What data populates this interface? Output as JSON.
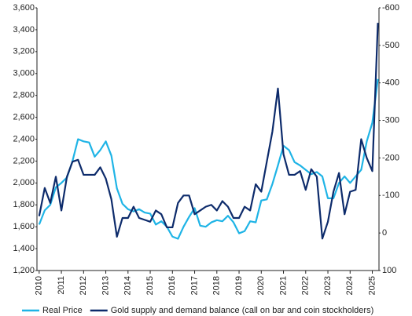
{
  "chart_data": {
    "type": "line",
    "x": [
      2010,
      2010.25,
      2010.5,
      2010.75,
      2011,
      2011.25,
      2011.5,
      2011.75,
      2012,
      2012.25,
      2012.5,
      2012.75,
      2013,
      2013.25,
      2013.5,
      2013.75,
      2014,
      2014.25,
      2014.5,
      2014.75,
      2015,
      2015.25,
      2015.5,
      2015.75,
      2016,
      2016.25,
      2016.5,
      2016.75,
      2017,
      2017.25,
      2017.5,
      2017.75,
      2018,
      2018.25,
      2018.5,
      2018.75,
      2019,
      2019.25,
      2019.5,
      2019.75,
      2020,
      2020.25,
      2020.5,
      2020.75,
      2021,
      2021.25,
      2021.5,
      2021.75,
      2022,
      2022.25,
      2022.5,
      2022.75,
      2023,
      2023.25,
      2023.5,
      2023.75,
      2024,
      2024.25,
      2024.5,
      2024.75,
      2025,
      2025.25
    ],
    "series": [
      {
        "name": "Real Price",
        "color": "#1fb4e6",
        "values": [
          1620,
          1750,
          1800,
          1960,
          2000,
          2050,
          2200,
          2400,
          2380,
          2370,
          2240,
          2300,
          2380,
          2250,
          1950,
          1810,
          1760,
          1740,
          1760,
          1730,
          1720,
          1620,
          1650,
          1600,
          1510,
          1490,
          1600,
          1690,
          1770,
          1610,
          1600,
          1640,
          1660,
          1650,
          1700,
          1640,
          1540,
          1560,
          1650,
          1640,
          1840,
          1850,
          1990,
          2160,
          2340,
          2300,
          2190,
          2160,
          2120,
          2080,
          2100,
          2060,
          1860,
          1860,
          2000,
          2060,
          2000,
          2060,
          2120,
          2380,
          2550,
          2950
        ]
      },
      {
        "name": "Gold supply and demand balance (call on bar and coin stockholders)",
        "color": "#0d2b6b",
        "axis": "y2",
        "values": [
          -45,
          -120,
          -80,
          -150,
          -60,
          -150,
          -190,
          -195,
          -155,
          -155,
          -155,
          -175,
          -145,
          -90,
          10,
          -40,
          -40,
          -70,
          -40,
          -35,
          -30,
          -60,
          -50,
          -15,
          -15,
          -80,
          -100,
          -100,
          -50,
          -60,
          -70,
          -75,
          -60,
          -85,
          -70,
          -40,
          -40,
          -70,
          -60,
          -130,
          -110,
          -190,
          -270,
          -385,
          -210,
          -155,
          -155,
          -165,
          -115,
          -170,
          -150,
          15,
          -30,
          -110,
          -160,
          -50,
          -110,
          -115,
          -250,
          -200,
          -165,
          -560
        ]
      }
    ],
    "xlim": [
      2009.9,
      2025.3
    ],
    "xticks": [
      2010,
      2011,
      2012,
      2013,
      2014,
      2015,
      2016,
      2017,
      2018,
      2019,
      2020,
      2021,
      2022,
      2023,
      2024,
      2025
    ],
    "ylim": [
      1200,
      3600
    ],
    "yticks": [
      {
        "value": 1200,
        "label": "1,200"
      },
      {
        "value": 1400,
        "label": "1,400"
      },
      {
        "value": 1600,
        "label": "1,600"
      },
      {
        "value": 1800,
        "label": "1,800"
      },
      {
        "value": 2000,
        "label": "2,000"
      },
      {
        "value": 2200,
        "label": "2,200"
      },
      {
        "value": 2400,
        "label": "2,400"
      },
      {
        "value": 2600,
        "label": "2,600"
      },
      {
        "value": 2800,
        "label": "2,800"
      },
      {
        "value": 3000,
        "label": "3,000"
      },
      {
        "value": 3200,
        "label": "3,200"
      },
      {
        "value": 3400,
        "label": "3,400"
      },
      {
        "value": 3600,
        "label": "3,600"
      }
    ],
    "y2lim": [
      100,
      -600
    ],
    "y2ticks": [
      -600,
      -500,
      -400,
      -300,
      -200,
      -100,
      0,
      100
    ],
    "grid": false
  }
}
